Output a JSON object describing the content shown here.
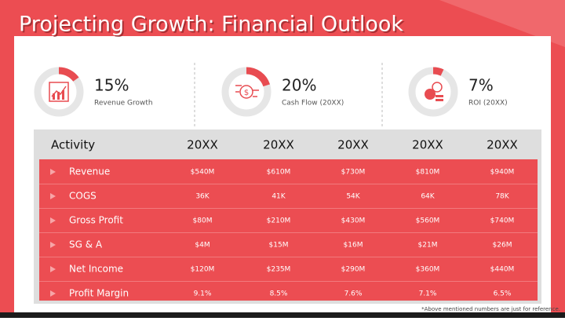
{
  "header": {
    "title": "Projecting Growth: Financial Outlook"
  },
  "kpis": [
    {
      "value": 15,
      "label": "15%",
      "caption": "Revenue Growth"
    },
    {
      "value": 20,
      "label": "20%",
      "caption": "Cash Flow (20XX)"
    },
    {
      "value": 7,
      "label": "7%",
      "caption": "ROI (20XX)"
    }
  ],
  "table": {
    "header": [
      "Activity",
      "20XX",
      "20XX",
      "20XX",
      "20XX",
      "20XX"
    ],
    "rows": [
      [
        "Revenue",
        "$540M",
        "$610M",
        "$730M",
        "$810M",
        "$940M"
      ],
      [
        "COGS",
        "36K",
        "41K",
        "54K",
        "64K",
        "78K"
      ],
      [
        "Gross Profit",
        "$80M",
        "$210M",
        "$430M",
        "$560M",
        "$740M"
      ],
      [
        "SG & A",
        "$4M",
        "$15M",
        "$16M",
        "$21M",
        "$26M"
      ],
      [
        "Net Income",
        "$120M",
        "$235M",
        "$290M",
        "$360M",
        "$440M"
      ],
      [
        "Profit Margin",
        "9.1%",
        "8.5%",
        "7.6%",
        "7.1%",
        "6.5%"
      ]
    ]
  },
  "footnote": "*Above mentioned numbers are just for reference."
}
